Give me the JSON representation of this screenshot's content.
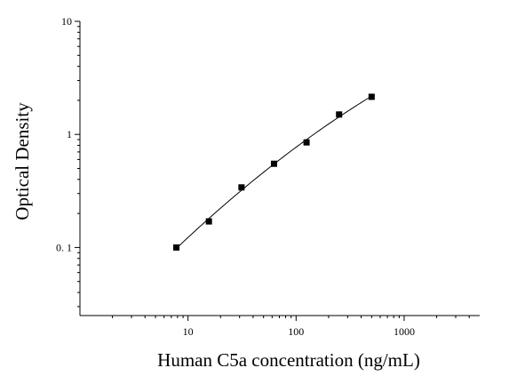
{
  "chart_data": {
    "type": "scatter",
    "title": "",
    "xlabel": "Human C5a concentration (ng/mL)",
    "ylabel": "Optical Density",
    "x_scale": "log",
    "y_scale": "log",
    "xlim": [
      1,
      5000
    ],
    "ylim": [
      0.025,
      10
    ],
    "x_ticks": [
      10,
      100,
      1000
    ],
    "x_tick_labels": [
      "10",
      "100",
      "1000"
    ],
    "y_ticks": [
      0.1,
      1,
      10
    ],
    "y_tick_labels": [
      "0. 1",
      "1",
      "10"
    ],
    "grid": false,
    "series": [
      {
        "x": [
          7.8,
          15.6,
          31.25,
          62.5,
          125,
          250,
          500
        ],
        "y": [
          0.1,
          0.17,
          0.34,
          0.55,
          0.85,
          1.5,
          2.15
        ],
        "marker": "square",
        "fit_curve": true
      }
    ]
  }
}
